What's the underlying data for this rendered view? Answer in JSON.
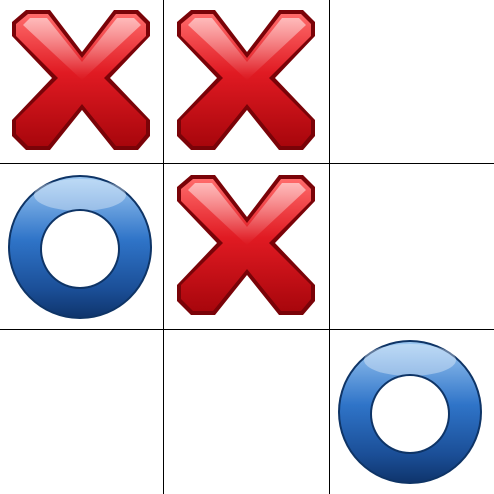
{
  "game": {
    "board": [
      [
        "X",
        "X",
        ""
      ],
      [
        "O",
        "X",
        ""
      ],
      [
        "",
        "",
        "O"
      ]
    ]
  },
  "colors": {
    "grid_line": "#000000",
    "x_mark": "#d9141b",
    "o_mark": "#1e5fb4",
    "background": "#ffffff"
  },
  "icons": {
    "x": "cross-icon",
    "o": "ring-icon"
  }
}
